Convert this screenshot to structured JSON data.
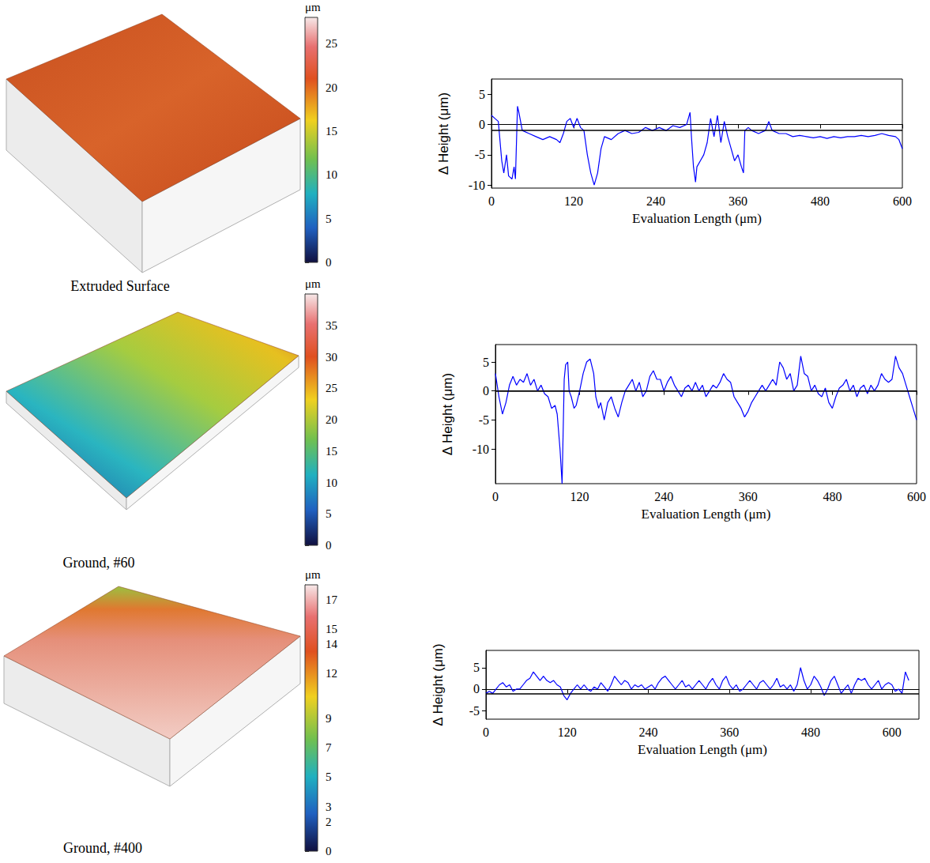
{
  "chart_data": [
    {
      "type": "surface",
      "title": "Extruded Surface",
      "colorbar": {
        "label": "μm",
        "range": [
          0,
          28
        ],
        "ticks": [
          0,
          5,
          10,
          15,
          20,
          25
        ]
      }
    },
    {
      "type": "line",
      "x_label": "Evaluation Length (μm)",
      "y_label": "Δ Height (μm)",
      "xlim": [
        0,
        600
      ],
      "xticks": [
        0,
        120,
        240,
        360,
        480,
        600
      ],
      "ylim": [
        -10.5,
        7.5
      ],
      "yticks": [
        -10,
        -5,
        0,
        5
      ],
      "grid": false,
      "color": "#0000ff",
      "mean_line": -1,
      "x": [
        0,
        5,
        10,
        15,
        18,
        22,
        25,
        30,
        33,
        35,
        38,
        40,
        45,
        55,
        65,
        75,
        85,
        95,
        100,
        105,
        110,
        115,
        120,
        125,
        130,
        135,
        140,
        145,
        150,
        155,
        160,
        165,
        175,
        185,
        195,
        205,
        215,
        225,
        235,
        245,
        255,
        265,
        275,
        285,
        290,
        292,
        295,
        298,
        300,
        305,
        310,
        315,
        320,
        325,
        330,
        335,
        340,
        345,
        350,
        355,
        360,
        365,
        368,
        370,
        375,
        380,
        390,
        400,
        405,
        410,
        420,
        430,
        440,
        450,
        460,
        470,
        480,
        490,
        500,
        510,
        520,
        530,
        540,
        550,
        560,
        570,
        580,
        590,
        595,
        600
      ],
      "values": [
        1.5,
        1,
        0.5,
        -6,
        -8,
        -5,
        -8.5,
        -9,
        -7,
        -9,
        3,
        2,
        -1,
        -1.5,
        -2,
        -2.5,
        -2,
        -2.5,
        -3,
        -1.5,
        0.5,
        1,
        -0.5,
        1,
        -0.5,
        -1,
        -5,
        -8,
        -10,
        -8,
        -4,
        -2,
        -2.5,
        -1.5,
        -1,
        -1.5,
        -1.3,
        -0.5,
        -1,
        -0.5,
        -1,
        -0.2,
        -0.5,
        0,
        2,
        -2,
        -7,
        -9.5,
        -7,
        -6,
        -5,
        -3,
        1,
        -2,
        1.5,
        -3,
        0.5,
        -2,
        -4,
        -6,
        -5,
        -7,
        -8,
        -1,
        -0.5,
        -1,
        -1.5,
        -1,
        0.5,
        -1,
        -1.5,
        -1.5,
        -2,
        -1.8,
        -2,
        -2.2,
        -2,
        -2.3,
        -2,
        -2.2,
        -2,
        -2,
        -1.8,
        -2,
        -1.8,
        -1.5,
        -1.8,
        -2,
        -2.5,
        -4
      ]
    },
    {
      "type": "surface",
      "title": "Ground, #60",
      "colorbar": {
        "label": "μm",
        "range": [
          0,
          40
        ],
        "ticks": [
          0,
          5,
          10,
          15,
          20,
          25,
          30,
          35
        ]
      }
    },
    {
      "type": "line",
      "x_label": "Evaluation Length (μm)",
      "y_label": "Δ Height (μm)",
      "xlim": [
        0,
        600
      ],
      "xticks": [
        0,
        120,
        240,
        360,
        480,
        600
      ],
      "ylim": [
        -16,
        8
      ],
      "yticks": [
        -10,
        -5,
        0,
        5
      ],
      "grid": false,
      "color": "#0000ff",
      "mean_line": 0,
      "x": [
        0,
        5,
        10,
        15,
        20,
        25,
        30,
        35,
        40,
        45,
        50,
        55,
        60,
        65,
        70,
        75,
        80,
        85,
        88,
        92,
        95,
        98,
        100,
        103,
        105,
        108,
        112,
        115,
        120,
        125,
        130,
        135,
        140,
        143,
        147,
        150,
        155,
        160,
        165,
        170,
        175,
        180,
        185,
        190,
        195,
        200,
        205,
        210,
        215,
        220,
        225,
        230,
        235,
        240,
        245,
        250,
        255,
        260,
        265,
        270,
        275,
        280,
        285,
        290,
        295,
        300,
        305,
        310,
        315,
        320,
        325,
        330,
        335,
        340,
        345,
        350,
        355,
        360,
        365,
        370,
        375,
        380,
        385,
        390,
        395,
        400,
        405,
        410,
        415,
        420,
        425,
        430,
        435,
        440,
        445,
        450,
        455,
        460,
        465,
        470,
        475,
        480,
        485,
        490,
        495,
        500,
        505,
        510,
        515,
        520,
        525,
        530,
        535,
        540,
        545,
        550,
        555,
        560,
        565,
        570,
        575,
        580,
        585,
        590,
        595,
        600
      ],
      "values": [
        3,
        -1,
        -4,
        -2,
        1,
        2.5,
        1,
        2,
        1.5,
        3,
        1,
        2,
        0,
        1,
        -0.5,
        -1,
        -3,
        -2.5,
        -4,
        -10,
        -16,
        2,
        4.5,
        5,
        0,
        -1,
        -3,
        -2.5,
        0,
        3,
        5,
        5.5,
        3,
        -1,
        -3,
        -2,
        -5,
        -2,
        -1,
        -3,
        -4.5,
        -2,
        0,
        1,
        2,
        0,
        1.5,
        -1,
        0,
        2.5,
        3.5,
        2,
        2,
        0,
        1.5,
        2.5,
        1,
        0,
        -1,
        0.5,
        1,
        0,
        1.5,
        0,
        1,
        -1,
        0,
        1,
        0.5,
        1.5,
        3,
        2,
        1.5,
        -1,
        -2,
        -3,
        -4.5,
        -3.5,
        -2,
        -1,
        0,
        1,
        0,
        1,
        2,
        1,
        5,
        4,
        2,
        3,
        0,
        1,
        6,
        3,
        2.5,
        0,
        1,
        -0.5,
        -1,
        0.5,
        -2,
        -3,
        -1,
        0.5,
        1,
        2,
        0,
        1,
        -1,
        0.5,
        1,
        -0.5,
        1,
        0,
        1,
        3,
        2,
        1.5,
        2,
        6,
        4,
        3,
        1,
        -1,
        -3,
        -5
      ]
    },
    {
      "type": "surface",
      "title": "Ground, #400",
      "colorbar": {
        "label": "μm",
        "range": [
          0,
          18
        ],
        "ticks": [
          0,
          2,
          3,
          5,
          7,
          9,
          12,
          14,
          15,
          17
        ]
      }
    },
    {
      "type": "line",
      "x_label": "Evaluation Length (μm)",
      "y_label": "Δ Height (μm)",
      "xlim": [
        0,
        640
      ],
      "xticks": [
        0,
        120,
        240,
        360,
        480,
        600
      ],
      "ylim": [
        -7,
        9
      ],
      "yticks": [
        -5,
        0,
        5
      ],
      "grid": false,
      "color": "#0000ff",
      "mean_line": -1,
      "x": [
        0,
        5,
        10,
        15,
        20,
        25,
        30,
        35,
        40,
        45,
        50,
        55,
        60,
        65,
        70,
        75,
        80,
        85,
        90,
        95,
        100,
        105,
        110,
        115,
        120,
        125,
        130,
        135,
        140,
        145,
        150,
        155,
        160,
        165,
        170,
        175,
        180,
        185,
        190,
        195,
        200,
        205,
        210,
        215,
        220,
        225,
        230,
        235,
        240,
        245,
        250,
        255,
        260,
        265,
        270,
        275,
        280,
        285,
        290,
        295,
        300,
        305,
        310,
        315,
        320,
        325,
        330,
        335,
        340,
        345,
        350,
        355,
        360,
        365,
        370,
        375,
        380,
        385,
        390,
        395,
        400,
        405,
        410,
        415,
        420,
        425,
        430,
        435,
        440,
        445,
        450,
        455,
        460,
        465,
        470,
        475,
        480,
        485,
        490,
        495,
        500,
        505,
        510,
        515,
        520,
        525,
        530,
        535,
        540,
        545,
        550,
        555,
        560,
        565,
        570,
        575,
        580,
        585,
        590,
        595,
        600,
        605,
        610,
        615,
        620,
        625
      ],
      "values": [
        -1,
        -0.5,
        -1,
        0,
        1,
        1.5,
        0.5,
        1,
        -0.5,
        0,
        0,
        1,
        2,
        2.5,
        4,
        3,
        2,
        3,
        2,
        1.5,
        2,
        1,
        0.5,
        -1.5,
        -2.5,
        -1,
        0,
        1,
        0,
        1,
        0,
        -0.5,
        0.5,
        0,
        1.5,
        0.5,
        -0.5,
        1,
        3,
        2,
        1,
        2,
        1.5,
        0,
        1,
        0.5,
        1,
        0,
        0.5,
        1,
        0,
        1.5,
        2.5,
        3,
        2,
        1,
        0,
        1,
        2,
        0.5,
        1,
        0,
        1,
        2,
        1,
        0,
        1.5,
        2.5,
        1,
        0,
        2,
        3,
        1,
        0,
        1,
        -0.5,
        0,
        1,
        2,
        1,
        0,
        1.5,
        2,
        1,
        0,
        1,
        2.5,
        0.5,
        1,
        0,
        1,
        -0.5,
        1,
        5,
        2,
        0,
        1,
        3,
        2,
        0.5,
        -1.5,
        0,
        2,
        3,
        1,
        -1,
        0,
        1,
        -1,
        1,
        2.5,
        2,
        2.5,
        1,
        0,
        1,
        2,
        0,
        1,
        1.5,
        1,
        -0.5,
        0,
        -1,
        4,
        2
      ]
    }
  ]
}
